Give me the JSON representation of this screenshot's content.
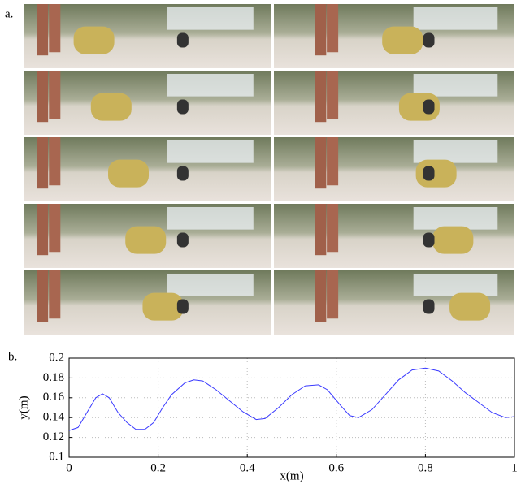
{
  "panel_labels": {
    "a": "a.",
    "b": "b."
  },
  "chart_data": {
    "type": "line",
    "xlabel": "x(m)",
    "ylabel": "y(m)",
    "x": [
      0,
      0.02,
      0.04,
      0.06,
      0.075,
      0.09,
      0.11,
      0.13,
      0.15,
      0.17,
      0.19,
      0.21,
      0.23,
      0.26,
      0.28,
      0.3,
      0.33,
      0.36,
      0.39,
      0.42,
      0.44,
      0.47,
      0.5,
      0.53,
      0.56,
      0.58,
      0.61,
      0.63,
      0.65,
      0.68,
      0.71,
      0.74,
      0.77,
      0.8,
      0.83,
      0.86,
      0.89,
      0.92,
      0.95,
      0.98,
      1.0
    ],
    "values": [
      0.127,
      0.13,
      0.145,
      0.16,
      0.164,
      0.16,
      0.145,
      0.135,
      0.128,
      0.128,
      0.135,
      0.15,
      0.163,
      0.175,
      0.178,
      0.177,
      0.168,
      0.157,
      0.146,
      0.138,
      0.139,
      0.15,
      0.163,
      0.172,
      0.173,
      0.168,
      0.152,
      0.142,
      0.14,
      0.148,
      0.163,
      0.178,
      0.188,
      0.19,
      0.187,
      0.177,
      0.165,
      0.155,
      0.145,
      0.14,
      0.141
    ],
    "color": "#3a3aff",
    "xlim": [
      0,
      1
    ],
    "xticks": [
      0,
      0.2,
      0.4,
      0.6,
      0.8,
      1
    ],
    "ylim": [
      0.1,
      0.2
    ],
    "yticks": [
      0.1,
      0.12,
      0.14,
      0.16,
      0.18,
      0.2
    ],
    "grid": true
  }
}
